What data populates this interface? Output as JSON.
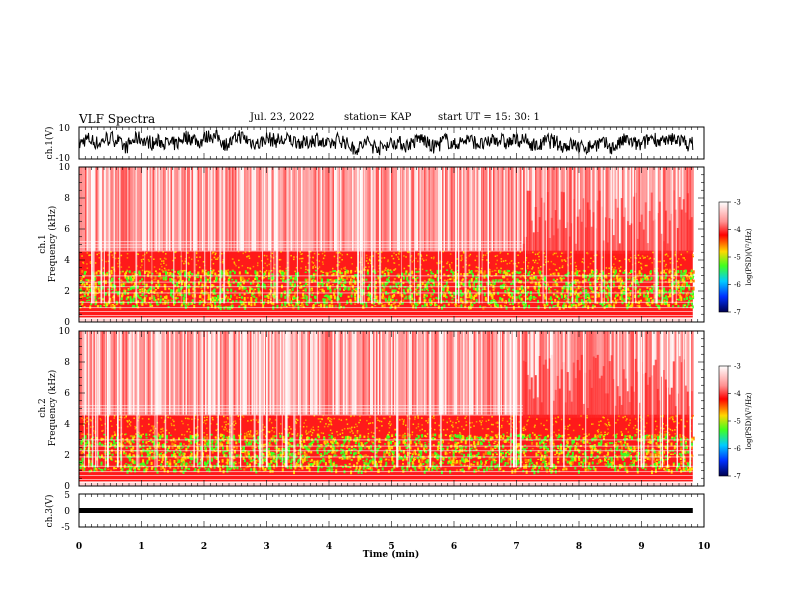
{
  "header": {
    "title": "VLF Spectra",
    "date": "Jul. 23, 2022",
    "station": "station= KAP",
    "start": "start UT =  15: 30: 1"
  },
  "chart_data": [
    {
      "type": "line",
      "name_panel": "ch1-waveform",
      "ylabel": "ch.1(V)",
      "ylim": [
        -10,
        10
      ],
      "yticks": [
        "10",
        "-10"
      ],
      "xlim": [
        0,
        10
      ]
    },
    {
      "type": "heatmap",
      "name_panel": "ch1-spectrogram",
      "ylabel_line1": "ch.1",
      "ylabel_line2": "Frequency (kHz)",
      "ylim": [
        0,
        10
      ],
      "yticks": [
        "0",
        "2",
        "4",
        "6",
        "8",
        "10"
      ],
      "xlim": [
        0,
        10
      ],
      "colorbar": {
        "label": "log(PSD)(V²/Hz)",
        "range": [
          -7,
          -3
        ],
        "ticks": [
          "-3",
          "-4",
          "-5",
          "-6",
          "-7"
        ]
      }
    },
    {
      "type": "heatmap",
      "name_panel": "ch2-spectrogram",
      "ylabel_line1": "ch.2",
      "ylabel_line2": "Frequency (kHz)",
      "ylim": [
        0,
        10
      ],
      "yticks": [
        "0",
        "2",
        "4",
        "6",
        "8",
        "10"
      ],
      "xlim": [
        0,
        10
      ],
      "colorbar": {
        "label": "log(PSD)(V²/Hz)",
        "range": [
          -7,
          -3
        ],
        "ticks": [
          "-3",
          "-4",
          "-5",
          "-6",
          "-7"
        ]
      }
    },
    {
      "type": "line",
      "name_panel": "ch3-waveform",
      "ylabel": "ch.3(V)",
      "ylim": [
        -5,
        5
      ],
      "yticks": [
        "5",
        "0",
        "-5"
      ],
      "xlim": [
        0,
        10
      ],
      "xlabel": "Time (min)",
      "xticks": [
        "0",
        "1",
        "2",
        "3",
        "4",
        "5",
        "6",
        "7",
        "8",
        "9",
        "10"
      ]
    }
  ],
  "colors": {
    "red": "#ff2020",
    "yellow": "#ffd800",
    "green": "#40ff20",
    "blue": "#0030ff",
    "navy": "#000060"
  }
}
